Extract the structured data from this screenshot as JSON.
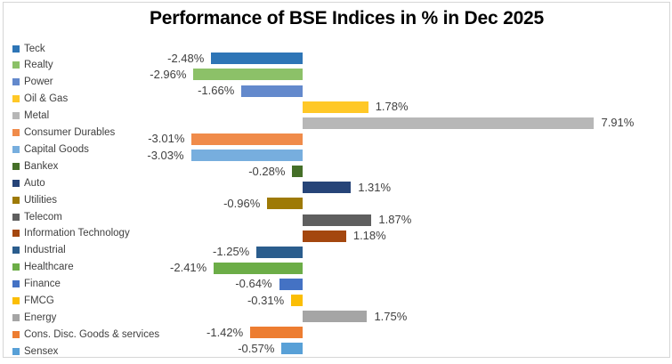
{
  "chart_data": {
    "type": "bar",
    "orientation": "horizontal",
    "title": "Performance of BSE Indices in % in Dec 2025",
    "xlabel": "",
    "ylabel": "",
    "legend_position": "left",
    "grid": false,
    "axis_visible": false,
    "baseline": 0,
    "xlim": [
      -3.5,
      9.5
    ],
    "categories": [
      "Teck",
      "Realty",
      "Power",
      "Oil & Gas",
      "Metal",
      "Consumer Durables",
      "Capital Goods",
      "Bankex",
      "Auto",
      "Utilities",
      "Telecom",
      "Information Technology",
      "Industrial",
      "Healthcare",
      "Finance",
      "FMCG",
      "Energy",
      "Cons. Disc. Goods & services",
      "Sensex"
    ],
    "values": [
      -2.48,
      -2.96,
      -1.66,
      1.78,
      7.91,
      -3.01,
      -3.03,
      -0.28,
      1.31,
      -0.96,
      1.87,
      1.18,
      -1.25,
      -2.41,
      -0.64,
      -0.31,
      1.75,
      -1.42,
      -0.57
    ],
    "data_labels": [
      "-2.48%",
      "-2.96%",
      "-1.66%",
      "1.78%",
      "7.91%",
      "-3.01%",
      "-3.03%",
      "-0.28%",
      "1.31%",
      "-0.96%",
      "1.87%",
      "1.18%",
      "-1.25%",
      "-2.41%",
      "-0.64%",
      "-0.31%",
      "1.75%",
      "-1.42%",
      "-0.57%"
    ],
    "colors": [
      "#2E75B6",
      "#8CC168",
      "#6389CC",
      "#FFC827",
      "#B7B7B7",
      "#F08B4A",
      "#77AEDE",
      "#456F28",
      "#264478",
      "#9E7A06",
      "#5F5F5F",
      "#A4470F",
      "#2B5D8D",
      "#6CAD47",
      "#4472C4",
      "#FBBE05",
      "#A5A5A5",
      "#ED7D31",
      "#58A0D7"
    ],
    "label_color": "#404040",
    "title_color": "#000000"
  }
}
